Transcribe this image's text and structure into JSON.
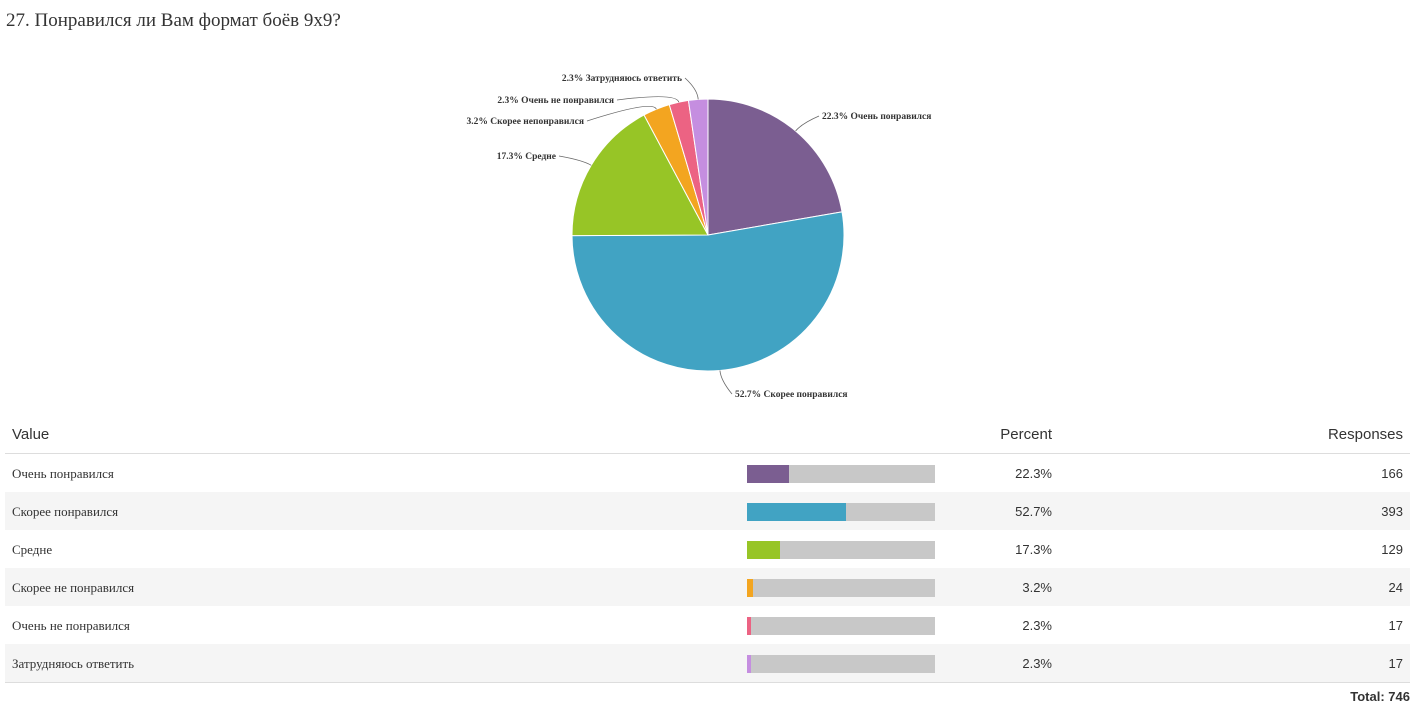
{
  "question": {
    "title": "27. Понравился ли Вам формат боёв 9x9?"
  },
  "chart_data": {
    "type": "pie",
    "title": "27. Понравился ли Вам формат боёв 9x9?",
    "slices": [
      {
        "label": "Очень понравился",
        "value": 22.3,
        "label_text": "22.3% Очень понравился",
        "color": "#7b5e91"
      },
      {
        "label": "Скорее понравился",
        "value": 52.7,
        "label_text": "52.7% Скорее понравился",
        "color": "#41a3c3"
      },
      {
        "label": "Средне",
        "value": 17.3,
        "label_text": "17.3% Средне",
        "color": "#97c526"
      },
      {
        "label": "Скорее не понравился",
        "value": 3.2,
        "label_text": "3.2% Скорее непонравился",
        "color": "#f3a520"
      },
      {
        "label": "Очень не понравился",
        "value": 2.3,
        "label_text": "2.3% Очень не понравился",
        "color": "#ec6383"
      },
      {
        "label": "Затрудняюсь ответить",
        "value": 2.3,
        "label_text": "2.3% Затрудняюсь ответить",
        "color": "#c58ee0"
      }
    ]
  },
  "table": {
    "headers": {
      "value": "Value",
      "percent": "Percent",
      "responses": "Responses"
    },
    "rows": [
      {
        "label": "Очень понравился",
        "percent": "22.3%",
        "fraction": 0.223,
        "responses": "166",
        "color": "#7b5e91"
      },
      {
        "label": "Скорее понравился",
        "percent": "52.7%",
        "fraction": 0.527,
        "responses": "393",
        "color": "#41a3c3"
      },
      {
        "label": "Средне",
        "percent": "17.3%",
        "fraction": 0.173,
        "responses": "129",
        "color": "#97c526"
      },
      {
        "label": "Скорее не понравился",
        "percent": "3.2%",
        "fraction": 0.032,
        "responses": "24",
        "color": "#f3a520"
      },
      {
        "label": "Очень не понравился",
        "percent": "2.3%",
        "fraction": 0.023,
        "responses": "17",
        "color": "#ec6383"
      },
      {
        "label": "Затрудняюсь ответить",
        "percent": "2.3%",
        "fraction": 0.023,
        "responses": "17",
        "color": "#c58ee0"
      }
    ],
    "total_label": "Total:",
    "total_value": "746"
  }
}
